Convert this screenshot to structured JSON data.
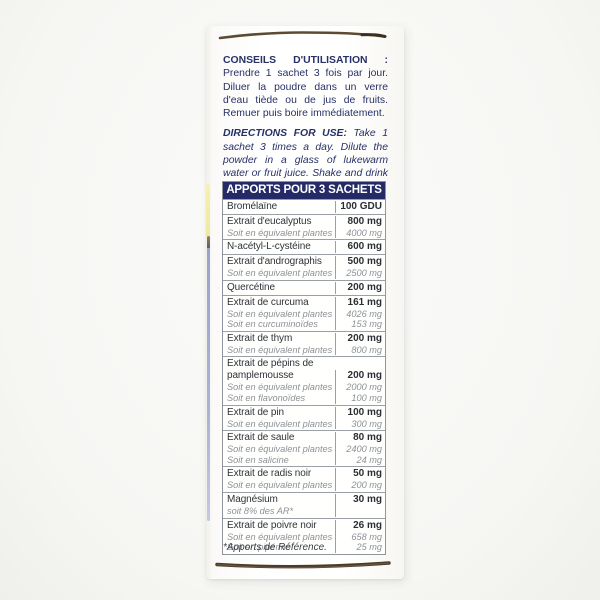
{
  "colors": {
    "accent_navy": "#232a66",
    "text_navy": "#273168",
    "table_text": "#2e3237",
    "sub_text_gray": "#8d9196",
    "table_border": "#9aa0a6",
    "stripe_yellow": "#f3edae",
    "stripe_blue": "#a8b0d5",
    "seam_brown": "#5d4a33"
  },
  "directions_fr": {
    "lead": "CONSEILS D'UTILISATION :",
    "body": "Prendre 1 sachet 3 fois par jour. Diluer la poudre dans un verre d'eau tiède ou de jus de fruits. Remuer puis boire immédiatement."
  },
  "directions_en": {
    "lead": "DIRECTIONS FOR USE:",
    "body": "Take 1 sachet 3 times a day. Dilute the powder in a glass of lukewarm water or fruit juice. Shake and drink immediately."
  },
  "table": {
    "header": "APPORTS POUR 3 SACHETS",
    "rows": [
      {
        "name": "Bromélaïne",
        "value": "100 GDU",
        "subs": []
      },
      {
        "name": "Extrait d'eucalyptus",
        "value": "800 mg",
        "subs": [
          {
            "label": "Soit en équivalent plantes",
            "value": "4000 mg"
          }
        ]
      },
      {
        "name": "N-acétyl-L-cystéine",
        "value": "600 mg",
        "subs": []
      },
      {
        "name": "Extrait d'andrographis",
        "value": "500 mg",
        "subs": [
          {
            "label": "Soit en équivalent plantes",
            "value": "2500 mg"
          }
        ]
      },
      {
        "name": "Quercétine",
        "value": "200 mg",
        "subs": []
      },
      {
        "name": "Extrait de curcuma",
        "value": "161 mg",
        "subs": [
          {
            "label": "Soit en équivalent plantes",
            "value": "4026 mg"
          },
          {
            "label": "Soit en curcuminoïdes",
            "value": "153 mg"
          }
        ]
      },
      {
        "name": "Extrait de thym",
        "value": "200 mg",
        "subs": [
          {
            "label": "Soit en équivalent plantes",
            "value": "800 mg"
          }
        ]
      },
      {
        "name": "Extrait de pépins de pamplemousse",
        "value": "200 mg",
        "subs": [
          {
            "label": "Soit en équivalent plantes",
            "value": "2000 mg"
          },
          {
            "label": "Soit en flavonoïdes",
            "value": "100 mg"
          }
        ]
      },
      {
        "name": "Extrait de pin",
        "value": "100 mg",
        "subs": [
          {
            "label": "Soit en équivalent plantes",
            "value": "300 mg"
          }
        ]
      },
      {
        "name": "Extrait de saule",
        "value": "80 mg",
        "subs": [
          {
            "label": "Soit en équivalent plantes",
            "value": "2400 mg"
          },
          {
            "label": "Soit en salicine",
            "value": "24 mg"
          }
        ]
      },
      {
        "name": "Extrait de radis noir",
        "value": "50 mg",
        "subs": [
          {
            "label": "Soit en équivalent plantes",
            "value": "200 mg"
          }
        ]
      },
      {
        "name": "Magnésium",
        "value": "30 mg",
        "subs": [
          {
            "label": "soit 8% des AR*",
            "value": ""
          }
        ]
      },
      {
        "name": "Extrait de poivre noir",
        "value": "26 mg",
        "subs": [
          {
            "label": "Soit en équivalent plantes",
            "value": "658 mg"
          },
          {
            "label": "Soit en pipérine",
            "value": "25 mg"
          }
        ]
      }
    ],
    "footnote": "*Apports de Référence."
  }
}
